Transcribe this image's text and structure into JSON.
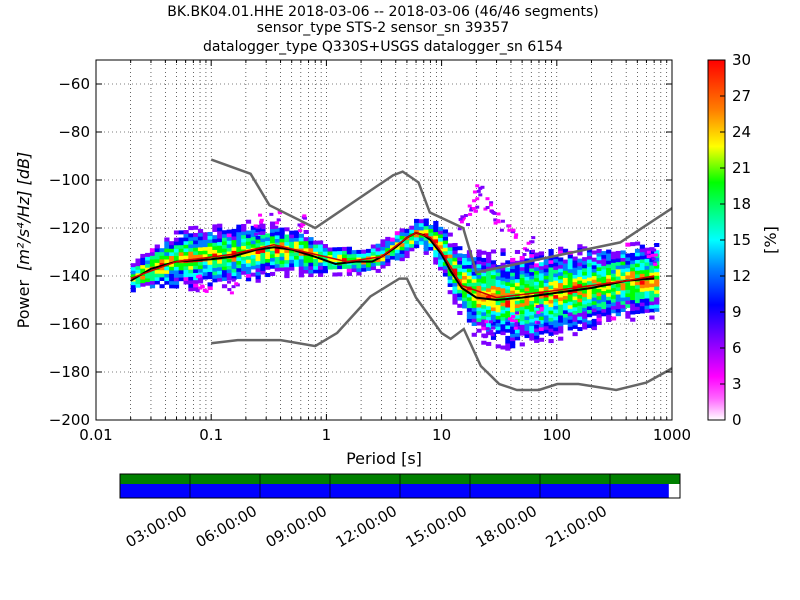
{
  "title_lines": [
    "BK.BK04.01.HHE   2018-03-06 -- 2018-03-06  (46/46 segments)",
    "sensor_type STS-2 sensor_sn 39357",
    "datalogger_type Q330S+USGS datalogger_sn 6154"
  ],
  "chart_data": {
    "type": "heatmap",
    "x_scale": "log",
    "xlabel": "Period [s]",
    "ylabel_prefix": "Power",
    "ylabel_units": "[m²/s⁴/Hz] [dB]",
    "xlim": [
      0.01,
      1000
    ],
    "ylim": [
      -200,
      -50
    ],
    "x_ticks": [
      0.01,
      0.1,
      1,
      10,
      100,
      1000
    ],
    "x_tick_labels": [
      "0.01",
      "0.1",
      "1",
      "10",
      "100",
      "1000"
    ],
    "y_ticks": [
      -200,
      -180,
      -160,
      -140,
      -120,
      -100,
      -80,
      -60
    ],
    "y_tick_labels": [
      "−200",
      "−180",
      "−160",
      "−140",
      "−120",
      "−100",
      "−80",
      "−60"
    ],
    "grid": "dotted",
    "colorbar": {
      "label": "[%]",
      "range": [
        0,
        30
      ],
      "ticks": [
        0,
        3,
        6,
        9,
        12,
        15,
        18,
        21,
        24,
        27,
        30
      ],
      "tick_labels": [
        "0",
        "3",
        "6",
        "9",
        "12",
        "15",
        "18",
        "21",
        "24",
        "27",
        "30"
      ],
      "colormap": [
        "#ffffff",
        "#ff00ff",
        "#8000ff",
        "#0000ff",
        "#0080ff",
        "#00ffff",
        "#00ff80",
        "#00ff00",
        "#ffff00",
        "#ff8000",
        "#ff0000"
      ]
    },
    "noise_models": [
      {
        "name": "NHNM",
        "color": "#666666",
        "points": [
          [
            0.1,
            -91.5
          ],
          [
            0.22,
            -97.4
          ],
          [
            0.32,
            -110.5
          ],
          [
            0.8,
            -120.0
          ],
          [
            3.8,
            -98.0
          ],
          [
            4.6,
            -96.5
          ],
          [
            6.3,
            -101.0
          ],
          [
            7.9,
            -113.5
          ],
          [
            15.4,
            -120.0
          ],
          [
            20.0,
            -138.5
          ],
          [
            354.8,
            -126.0
          ],
          [
            10000,
            -80.1
          ]
        ]
      },
      {
        "name": "NLNM",
        "color": "#666666",
        "points": [
          [
            0.1,
            -168.0
          ],
          [
            0.17,
            -166.7
          ],
          [
            0.4,
            -166.7
          ],
          [
            0.8,
            -169.2
          ],
          [
            1.24,
            -163.7
          ],
          [
            2.4,
            -148.6
          ],
          [
            4.3,
            -141.1
          ],
          [
            5.0,
            -141.1
          ],
          [
            6.0,
            -149.0
          ],
          [
            10.0,
            -163.8
          ],
          [
            12.0,
            -166.2
          ],
          [
            15.6,
            -162.1
          ],
          [
            21.9,
            -177.5
          ],
          [
            31.6,
            -185.0
          ],
          [
            45.0,
            -187.5
          ],
          [
            70.0,
            -187.5
          ],
          [
            101.0,
            -185.0
          ],
          [
            154.0,
            -185.0
          ],
          [
            328.0,
            -187.5
          ],
          [
            600.0,
            -184.4
          ],
          [
            1000,
            -178.5
          ]
        ]
      }
    ],
    "mode_curve": {
      "name": "mode",
      "color": "#000000",
      "points": [
        [
          0.02,
          -142
        ],
        [
          0.03,
          -137
        ],
        [
          0.05,
          -134
        ],
        [
          0.1,
          -133
        ],
        [
          0.15,
          -132
        ],
        [
          0.25,
          -129
        ],
        [
          0.35,
          -128
        ],
        [
          0.5,
          -129
        ],
        [
          0.8,
          -132
        ],
        [
          1.2,
          -135
        ],
        [
          1.8,
          -134
        ],
        [
          2.5,
          -134
        ],
        [
          3.0,
          -132
        ],
        [
          4.0,
          -128
        ],
        [
          5.0,
          -124
        ],
        [
          6.0,
          -122
        ],
        [
          7.0,
          -123
        ],
        [
          8.0,
          -125
        ],
        [
          10.0,
          -131
        ],
        [
          12.0,
          -138
        ],
        [
          15.0,
          -145
        ],
        [
          20.0,
          -149
        ],
        [
          30.0,
          -150
        ],
        [
          50.0,
          -149
        ],
        [
          100.0,
          -147
        ],
        [
          200.0,
          -145
        ],
        [
          400.0,
          -142
        ],
        [
          700.0,
          -141
        ]
      ]
    },
    "median_curve": {
      "name": "median",
      "color": "#cc0000",
      "points": [
        [
          0.02,
          -141
        ],
        [
          0.05,
          -134
        ],
        [
          0.15,
          -131
        ],
        [
          0.35,
          -127
        ],
        [
          0.8,
          -131
        ],
        [
          1.5,
          -134
        ],
        [
          3.0,
          -132
        ],
        [
          5.0,
          -124
        ],
        [
          6.0,
          -122
        ],
        [
          8.0,
          -124
        ],
        [
          10.0,
          -130
        ],
        [
          15.0,
          -144
        ],
        [
          30.0,
          -149
        ],
        [
          100.0,
          -146
        ],
        [
          400.0,
          -142
        ],
        [
          700.0,
          -140
        ]
      ]
    },
    "psd_density_band": [
      {
        "period": 0.02,
        "center": -141,
        "width": 4
      },
      {
        "period": 0.03,
        "center": -136,
        "width": 6
      },
      {
        "period": 0.05,
        "center": -133,
        "width": 8
      },
      {
        "period": 0.1,
        "center": -132,
        "width": 8
      },
      {
        "period": 0.2,
        "center": -130,
        "width": 8
      },
      {
        "period": 0.35,
        "center": -129,
        "width": 7
      },
      {
        "period": 0.6,
        "center": -130,
        "width": 6
      },
      {
        "period": 1.0,
        "center": -133,
        "width": 4
      },
      {
        "period": 2.0,
        "center": -134,
        "width": 3
      },
      {
        "period": 3.0,
        "center": -131,
        "width": 4
      },
      {
        "period": 4.5,
        "center": -126,
        "width": 4
      },
      {
        "period": 6.0,
        "center": -122,
        "width": 4
      },
      {
        "period": 8.0,
        "center": -124,
        "width": 5
      },
      {
        "period": 10.0,
        "center": -130,
        "width": 7
      },
      {
        "period": 14.0,
        "center": -142,
        "width": 9
      },
      {
        "period": 20.0,
        "center": -148,
        "width": 12
      },
      {
        "period": 40.0,
        "center": -150,
        "width": 13
      },
      {
        "period": 100.0,
        "center": -147,
        "width": 12
      },
      {
        "period": 300.0,
        "center": -143,
        "width": 10
      },
      {
        "period": 700.0,
        "center": -141,
        "width": 10
      }
    ],
    "outlier_blobs": [
      {
        "period": 0.35,
        "power": -116
      },
      {
        "period": 0.25,
        "power": -118
      },
      {
        "period": 0.6,
        "power": -118
      },
      {
        "period": 0.15,
        "power": -145
      },
      {
        "period": 0.08,
        "power": -143
      },
      {
        "period": 20.0,
        "power": -105
      },
      {
        "period": 25.0,
        "power": -110
      },
      {
        "period": 30.0,
        "power": -117
      },
      {
        "period": 40.0,
        "power": -122
      },
      {
        "period": 55.0,
        "power": -127
      },
      {
        "period": 18.0,
        "power": -112
      },
      {
        "period": 15.0,
        "power": -118
      },
      {
        "period": 25.0,
        "power": -162
      },
      {
        "period": 40.0,
        "power": -158
      },
      {
        "period": 70.0,
        "power": -155
      },
      {
        "period": 650.0,
        "power": -132
      }
    ]
  },
  "timeline": {
    "top_band_color": "#008000",
    "bottom_band_color": "#0000ff",
    "coverage_fraction": 0.98,
    "tick_labels": [
      "03:00:00",
      "06:00:00",
      "09:00:00",
      "12:00:00",
      "15:00:00",
      "18:00:00",
      "21:00:00"
    ]
  }
}
